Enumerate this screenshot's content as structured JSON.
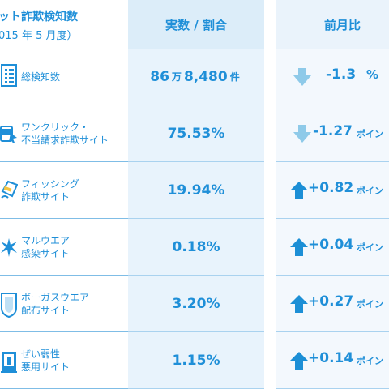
{
  "header": {
    "title": "ット詐欺検知数",
    "subtitle": "015 年 5 月度）",
    "col_value": "実数 / 割合",
    "col_change": "前月比"
  },
  "colors": {
    "brand_blue": "#1f8fd8",
    "arrow_down": "#8ecae9",
    "arrow_up": "#1c8fd6",
    "value_column_bg": "#e8f3fc"
  },
  "rows": [
    {
      "icon": "document-list-icon",
      "label_line1": "総検知数",
      "label_line2": "",
      "value_main": "86",
      "value_unit1": "万",
      "value_rest": "8,480",
      "value_unit2": "件",
      "direction": "down",
      "change": "-1.3",
      "change_unit": "%"
    },
    {
      "icon": "click-scam-icon",
      "label_line1": "ワンクリック・",
      "label_line2": "不当請求詐欺サイト",
      "value_main": "75.53%",
      "direction": "down",
      "change": "-1.27",
      "change_unit": "ポイン"
    },
    {
      "icon": "credit-card-phishing-icon",
      "label_line1": "フィッシング",
      "label_line2": "詐欺サイト",
      "value_main": "19.94%",
      "direction": "up",
      "change": "+0.82",
      "change_unit": "ポイン"
    },
    {
      "icon": "malware-burst-icon",
      "label_line1": "マルウエア",
      "label_line2": "感染サイト",
      "value_main": "0.18%",
      "direction": "up",
      "change": "+0.04",
      "change_unit": "ポイン"
    },
    {
      "icon": "shield-icon",
      "label_line1": "ボーガスウエア",
      "label_line2": "配布サイト",
      "value_main": "3.20%",
      "direction": "up",
      "change": "+0.27",
      "change_unit": "ポイン"
    },
    {
      "icon": "vulnerable-device-icon",
      "label_line1": "ぜい弱性",
      "label_line2": "悪用サイト",
      "value_main": "1.15%",
      "direction": "up",
      "change": "+0.14",
      "change_unit": "ポイン"
    }
  ]
}
